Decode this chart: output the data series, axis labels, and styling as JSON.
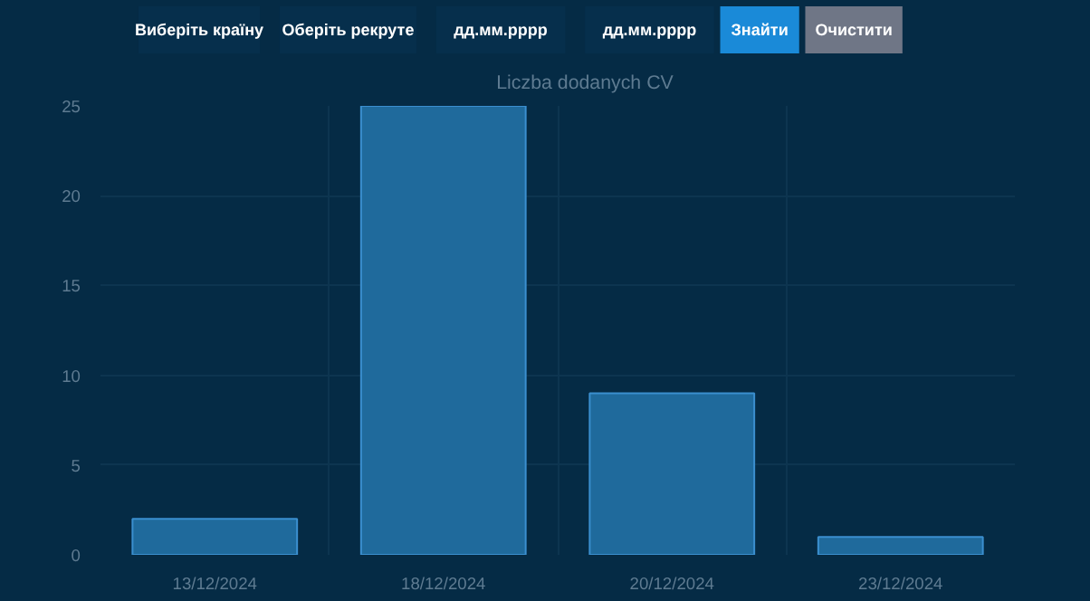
{
  "chart_data": {
    "type": "bar",
    "categories": [
      "13/12/2024",
      "18/12/2024",
      "20/12/2024",
      "23/12/2024"
    ],
    "series": [
      {
        "name": "Liczba dodanych CV",
        "color": "#1f6a9c",
        "values": [
          2,
          25,
          9,
          1
        ]
      }
    ],
    "ylim": [
      0,
      25
    ],
    "yticks": [
      0,
      5,
      10,
      15,
      20,
      25
    ],
    "grid": true,
    "legend": "top",
    "annotations": [
      "Виберіть країну",
      "Оберіть рекруте",
      "дд.мм.рррр",
      "дд.мм.рррр",
      "Знайти",
      "Очистити"
    ]
  }
}
